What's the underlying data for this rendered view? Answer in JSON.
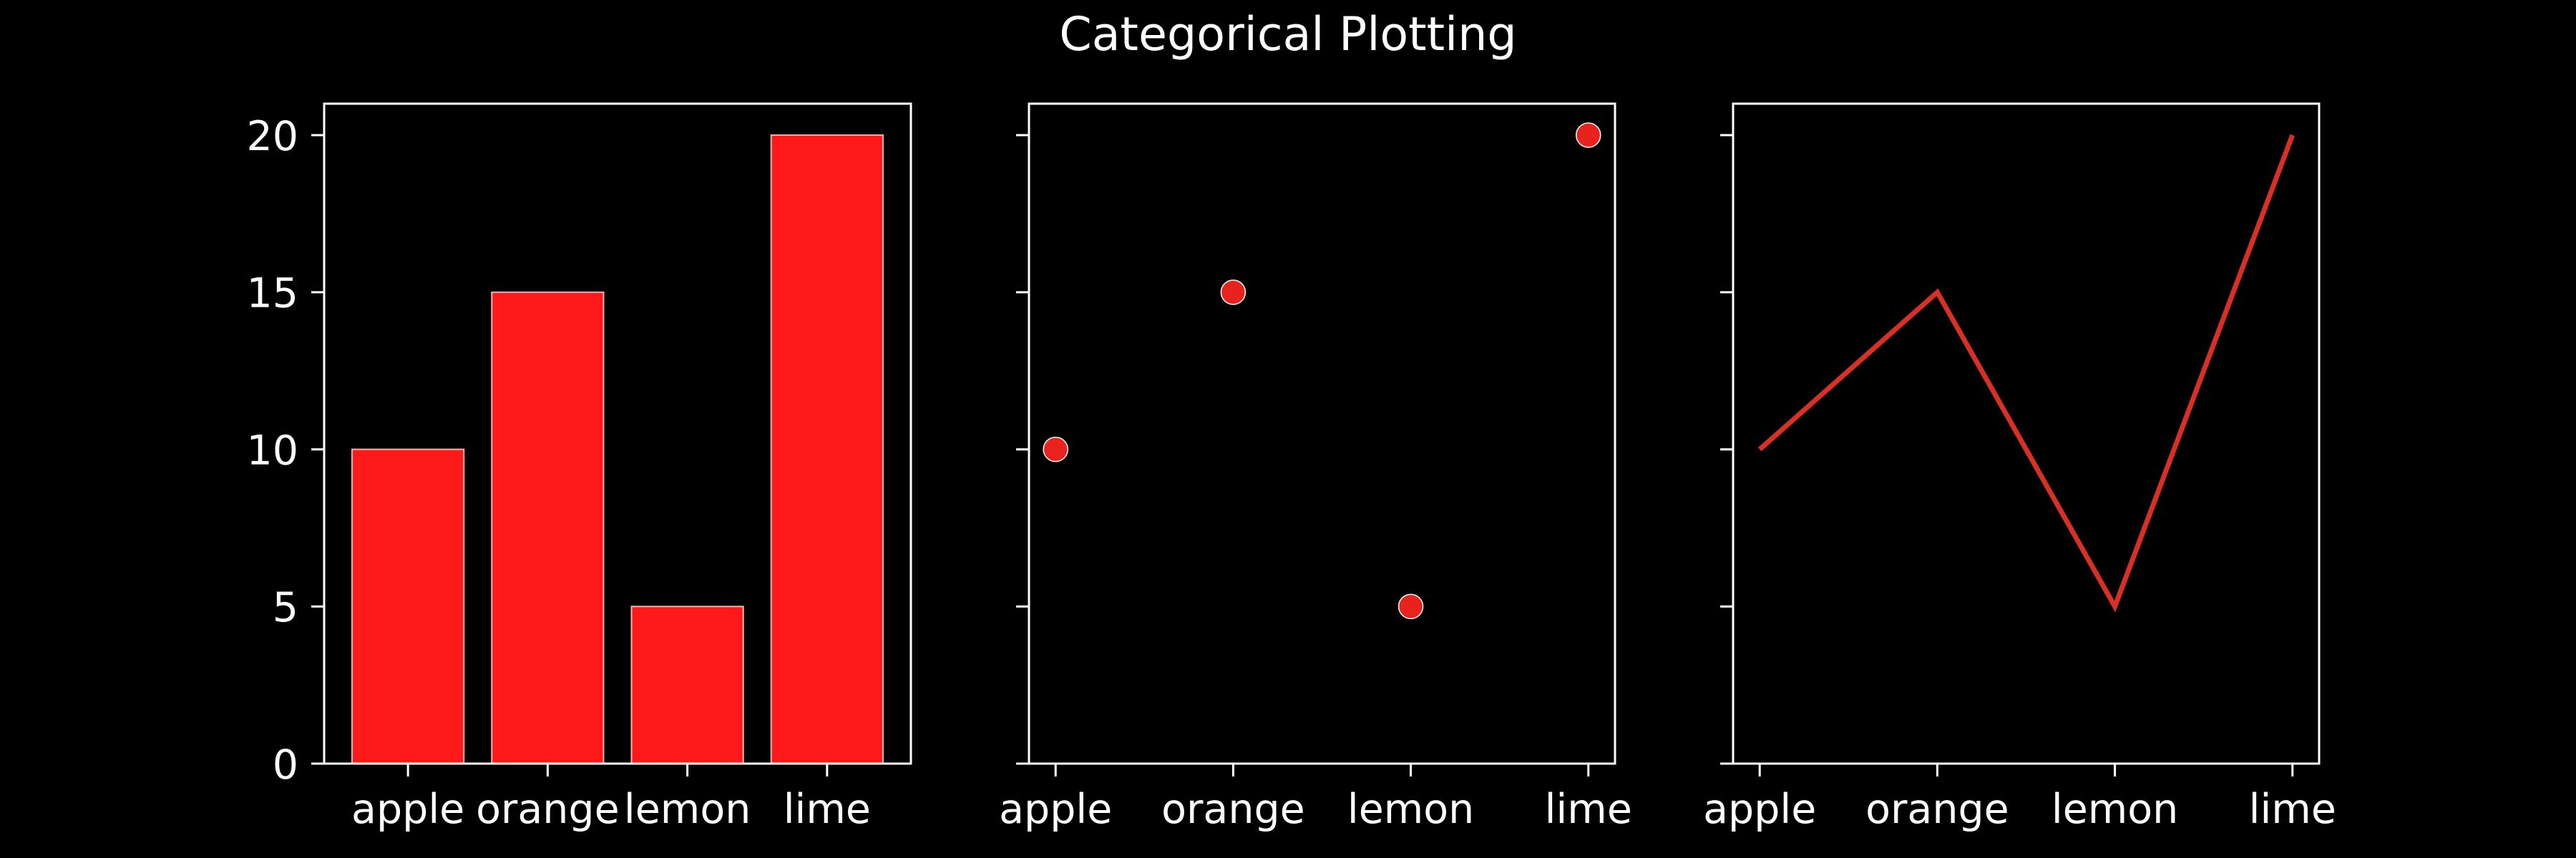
{
  "figure": {
    "title": "Categorical Plotting",
    "background": "#000000",
    "foreground": "#ffffff"
  },
  "chart_data": [
    {
      "type": "bar",
      "categories": [
        "apple",
        "orange",
        "lemon",
        "lime"
      ],
      "values": [
        10,
        15,
        5,
        20
      ],
      "ylim": [
        0,
        21
      ],
      "yticks": [
        "0",
        "5",
        "10",
        "15",
        "20"
      ],
      "grid": false,
      "color": "#ff1a1a",
      "title": "",
      "xlabel": "",
      "ylabel": ""
    },
    {
      "type": "scatter",
      "categories": [
        "apple",
        "orange",
        "lemon",
        "lime"
      ],
      "values": [
        10,
        15,
        5,
        20
      ],
      "ylim": [
        0,
        21
      ],
      "grid": false,
      "color": "#e8221c",
      "title": "",
      "xlabel": "",
      "ylabel": ""
    },
    {
      "type": "line",
      "categories": [
        "apple",
        "orange",
        "lemon",
        "lime"
      ],
      "values": [
        10,
        15,
        5,
        20
      ],
      "ylim": [
        0,
        21
      ],
      "grid": false,
      "color": "#d93025",
      "title": "",
      "xlabel": "",
      "ylabel": ""
    }
  ]
}
